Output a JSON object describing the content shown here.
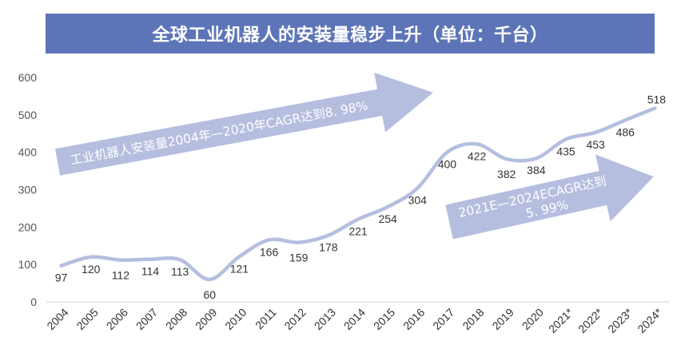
{
  "title": "全球工业机器人的安装量稳步上升（单位：千台）",
  "colors": {
    "title_bg": "#5d75b8",
    "line": "#b4bfdf",
    "arrow": "#b6bedf",
    "axis": "#d0d0d0"
  },
  "annotations": {
    "arrow1_text": "工业机器人安装量2004年—2020年CAGR达到8. 98%",
    "arrow2_line1": "2021E—2024ECAGR达到",
    "arrow2_line2": "5. 99%"
  },
  "chart_data": {
    "type": "line",
    "title": "全球工业机器人的安装量稳步上升（单位：千台）",
    "xlabel": "",
    "ylabel": "",
    "ylim": [
      0,
      600
    ],
    "yticks": [
      "0",
      "100",
      "200",
      "300",
      "400",
      "500",
      "600"
    ],
    "grid": false,
    "smooth": true,
    "categories": [
      "2004",
      "2005",
      "2006",
      "2007",
      "2008",
      "2009",
      "2010",
      "2011",
      "2012",
      "2013",
      "2014",
      "2015",
      "2016",
      "2017",
      "2018",
      "2019",
      "2020",
      "2021*",
      "2022*",
      "2023*",
      "2024*"
    ],
    "values": [
      97,
      120,
      112,
      114,
      113,
      60,
      121,
      166,
      159,
      178,
      221,
      254,
      304,
      400,
      422,
      382,
      384,
      435,
      453,
      486,
      518
    ],
    "data_labels": [
      "97",
      "120",
      "112",
      "114",
      "113",
      "60",
      "121",
      "166",
      "159",
      "178",
      "221",
      "254",
      "304",
      "400",
      "422",
      "382",
      "384",
      "435",
      "453",
      "486",
      "518"
    ]
  }
}
